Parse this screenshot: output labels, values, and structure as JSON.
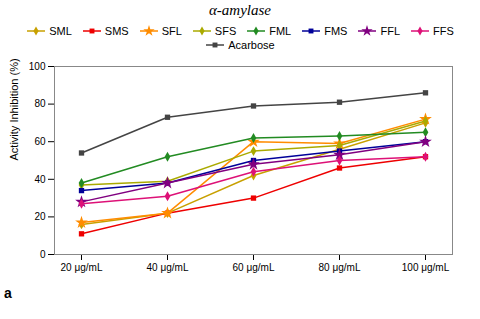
{
  "chart_data": {
    "type": "line",
    "title": "α-amylase",
    "ylabel": "Activity Inhibition (%)",
    "annotation": "a",
    "categories": [
      "20 μg/mL",
      "40 μg/mL",
      "60 μg/mL",
      "80 μg/mL",
      "100 μg/mL"
    ],
    "series": [
      {
        "name": "SML",
        "color": "#C8A000",
        "marker": "diamond",
        "line_style": "solid",
        "values": [
          16,
          22,
          42,
          56,
          70
        ]
      },
      {
        "name": "SMS",
        "color": "#EE0000",
        "marker": "square",
        "line_style": "solid",
        "values": [
          11,
          22,
          30,
          46,
          52
        ]
      },
      {
        "name": "SFL",
        "color": "#FF8C00",
        "marker": "star",
        "line_style": "solid",
        "values": [
          17,
          22,
          60,
          59,
          72
        ]
      },
      {
        "name": "SFS",
        "color": "#AAAA00",
        "marker": "diamond",
        "line_style": "solid",
        "values": [
          37,
          39,
          55,
          58,
          71
        ]
      },
      {
        "name": "FML",
        "color": "#228B22",
        "marker": "diamond",
        "line_style": "solid",
        "values": [
          38,
          52,
          62,
          63,
          65
        ]
      },
      {
        "name": "FMS",
        "color": "#000099",
        "marker": "square",
        "line_style": "solid",
        "values": [
          34,
          38,
          50,
          55,
          60
        ]
      },
      {
        "name": "FFL",
        "color": "#800080",
        "marker": "star",
        "line_style": "solid",
        "values": [
          28,
          38,
          48,
          53,
          60
        ]
      },
      {
        "name": "FFS",
        "color": "#DD1177",
        "marker": "diamond",
        "line_style": "solid",
        "values": [
          27,
          31,
          44,
          50,
          52
        ]
      },
      {
        "name": "Acarbose",
        "color": "#444444",
        "marker": "square",
        "line_style": "solid",
        "values": [
          54,
          73,
          79,
          81,
          86
        ]
      }
    ],
    "ylim": [
      0,
      100
    ],
    "yticks": [
      0,
      20,
      40,
      60,
      80,
      100
    ],
    "grid": false,
    "legend": "top"
  }
}
